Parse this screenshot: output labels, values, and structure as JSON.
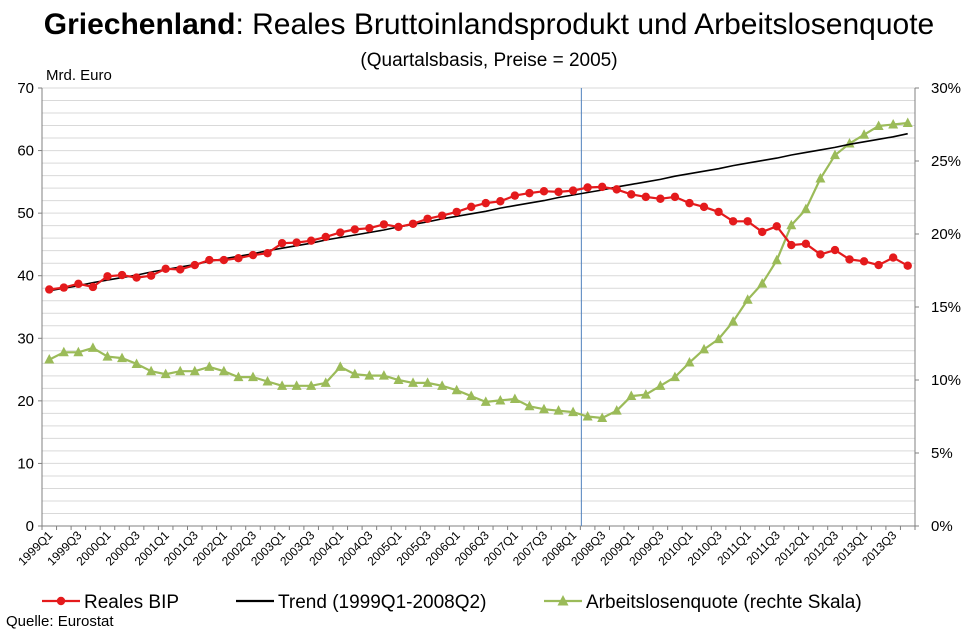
{
  "chart_data": {
    "type": "line",
    "title_bold": "Griechenland",
    "title_rest": ": Reales Bruttoinlandsprodukt und Arbeitslosenquote",
    "subtitle": "(Quartalsbasis, Preise = 2005)",
    "ylabel": "Mrd. Euro",
    "source": "Quelle: Eurostat",
    "ylim": [
      0,
      70
    ],
    "y_ticks": [
      "0",
      "10",
      "20",
      "30",
      "40",
      "50",
      "60",
      "70"
    ],
    "y2lim": [
      0,
      30
    ],
    "y2_ticks": [
      "0%",
      "5%",
      "10%",
      "15%",
      "20%",
      "25%",
      "30%"
    ],
    "grid": true,
    "legend_position": "bottom",
    "x": [
      "1999Q1",
      "1999Q2",
      "1999Q3",
      "1999Q4",
      "2000Q1",
      "2000Q2",
      "2000Q3",
      "2000Q4",
      "2001Q1",
      "2001Q2",
      "2001Q3",
      "2001Q4",
      "2002Q1",
      "2002Q2",
      "2002Q3",
      "2002Q4",
      "2003Q1",
      "2003Q2",
      "2003Q3",
      "2003Q4",
      "2004Q1",
      "2004Q2",
      "2004Q3",
      "2004Q4",
      "2005Q1",
      "2005Q2",
      "2005Q3",
      "2005Q4",
      "2006Q1",
      "2006Q2",
      "2006Q3",
      "2006Q4",
      "2007Q1",
      "2007Q2",
      "2007Q3",
      "2007Q4",
      "2008Q1",
      "2008Q2",
      "2008Q3",
      "2008Q4",
      "2009Q1",
      "2009Q2",
      "2009Q3",
      "2009Q4",
      "2010Q1",
      "2010Q2",
      "2010Q3",
      "2010Q4",
      "2011Q1",
      "2011Q2",
      "2011Q3",
      "2011Q4",
      "2012Q1",
      "2012Q2",
      "2012Q3",
      "2012Q4",
      "2013Q1",
      "2013Q2",
      "2013Q3",
      "2013Q4"
    ],
    "x_tick_labels": [
      "1999Q1",
      "1999Q3",
      "2000Q1",
      "2000Q3",
      "2001Q1",
      "2001Q3",
      "2002Q1",
      "2002Q3",
      "2003Q1",
      "2003Q3",
      "2004Q1",
      "2004Q3",
      "2005Q1",
      "2005Q3",
      "2006Q1",
      "2006Q3",
      "2007Q1",
      "2007Q3",
      "2008Q1",
      "2008Q3",
      "2009Q1",
      "2009Q3",
      "2010Q1",
      "2010Q3",
      "2011Q1",
      "2011Q3",
      "2012Q1",
      "2012Q3",
      "2013Q1",
      "2013Q3"
    ],
    "vertical_marker": "2008Q2",
    "series": [
      {
        "name": "Reales BIP",
        "axis": "left",
        "color": "#e41a1c",
        "marker": "circle",
        "values": [
          37.8,
          38.1,
          38.7,
          38.2,
          39.9,
          40.1,
          39.7,
          40.0,
          41.1,
          41.0,
          41.7,
          42.5,
          42.5,
          42.8,
          43.3,
          43.6,
          45.2,
          45.3,
          45.6,
          46.2,
          46.9,
          47.4,
          47.6,
          48.2,
          47.8,
          48.3,
          49.1,
          49.6,
          50.2,
          51.0,
          51.6,
          51.9,
          52.8,
          53.2,
          53.5,
          53.4,
          53.6,
          54.1,
          54.2,
          53.8,
          53.0,
          52.6,
          52.3,
          52.6,
          51.6,
          51.0,
          50.2,
          48.7,
          48.7,
          47.0,
          47.9,
          44.9,
          45.1,
          43.4,
          44.1,
          42.6,
          42.3,
          41.7,
          42.9,
          41.6
        ]
      },
      {
        "name": "Trend (1999Q1-2008Q2)",
        "axis": "left",
        "color": "#000000",
        "marker": "none",
        "values": [
          37.6,
          38.0,
          38.4,
          38.9,
          39.3,
          39.7,
          40.1,
          40.6,
          41.0,
          41.4,
          41.8,
          42.3,
          42.7,
          43.1,
          43.5,
          44.0,
          44.4,
          44.8,
          45.2,
          45.7,
          46.1,
          46.5,
          46.9,
          47.3,
          47.8,
          48.2,
          48.6,
          49.1,
          49.5,
          49.9,
          50.3,
          50.8,
          51.2,
          51.6,
          52.0,
          52.5,
          52.9,
          53.3,
          53.7,
          54.2,
          54.6,
          55.0,
          55.4,
          55.9,
          56.3,
          56.7,
          57.1,
          57.6,
          58.0,
          58.4,
          58.8,
          59.3,
          59.7,
          60.1,
          60.5,
          61.0,
          61.4,
          61.8,
          62.2,
          62.7
        ]
      },
      {
        "name": "Arbeitslosenquote (rechte Skala)",
        "axis": "right",
        "color": "#9bbb59",
        "marker": "triangle",
        "values": [
          11.4,
          11.9,
          11.9,
          12.2,
          11.6,
          11.5,
          11.1,
          10.6,
          10.4,
          10.6,
          10.6,
          10.9,
          10.6,
          10.2,
          10.2,
          9.9,
          9.6,
          9.6,
          9.6,
          9.8,
          10.9,
          10.4,
          10.3,
          10.3,
          10.0,
          9.8,
          9.8,
          9.6,
          9.3,
          8.9,
          8.5,
          8.6,
          8.7,
          8.2,
          8.0,
          7.9,
          7.8,
          7.5,
          7.4,
          7.9,
          8.9,
          9.0,
          9.6,
          10.2,
          11.2,
          12.1,
          12.8,
          14.0,
          15.5,
          16.6,
          18.2,
          20.6,
          21.7,
          23.8,
          25.4,
          26.2,
          26.8,
          27.4,
          27.5,
          27.6
        ]
      }
    ]
  }
}
